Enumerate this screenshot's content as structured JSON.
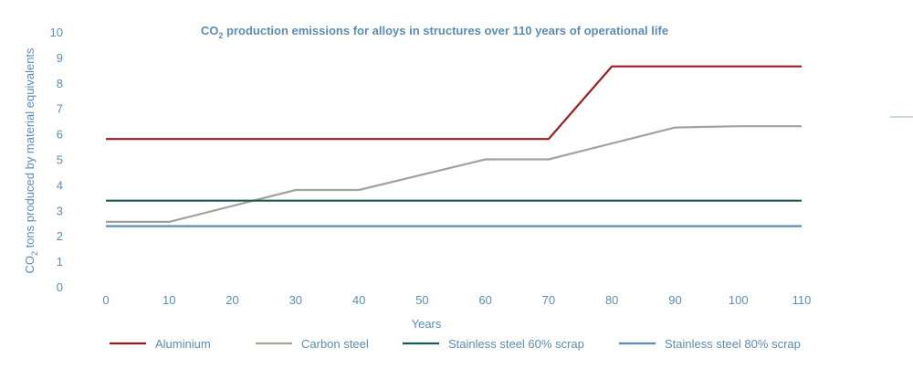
{
  "chart_data": {
    "type": "line",
    "title_prefix": "CO",
    "title_sub": "2",
    "title_rest": " production emissions for alloys in structures over 110 years of operational life",
    "xlabel": "Years",
    "ylabel_prefix": "CO",
    "ylabel_sub": "2",
    "ylabel_rest": " tons produced by material equivalents",
    "xlim": [
      0,
      110
    ],
    "ylim": [
      0,
      10
    ],
    "x_ticks": [
      0,
      10,
      20,
      30,
      40,
      50,
      60,
      70,
      80,
      90,
      100,
      110
    ],
    "y_ticks": [
      0,
      1,
      2,
      3,
      4,
      5,
      6,
      7,
      8,
      9,
      10
    ],
    "grid": false,
    "legend_position": "bottom",
    "series": [
      {
        "name": "Aluminium",
        "color": "#9b1c22",
        "points": [
          [
            0,
            5.8
          ],
          [
            70,
            5.8
          ],
          [
            80,
            8.65
          ],
          [
            110,
            8.65
          ]
        ]
      },
      {
        "name": "Carbon steel",
        "color": "#a3a39b",
        "points": [
          [
            0,
            2.55
          ],
          [
            10,
            2.55
          ],
          [
            30,
            3.8
          ],
          [
            40,
            3.8
          ],
          [
            60,
            5.0
          ],
          [
            70,
            5.0
          ],
          [
            90,
            6.25
          ],
          [
            100,
            6.3
          ],
          [
            110,
            6.3
          ]
        ]
      },
      {
        "name": "Stainless steel 60% scrap",
        "color": "#1d5a52",
        "points": [
          [
            0,
            3.38
          ],
          [
            110,
            3.38
          ]
        ]
      },
      {
        "name": "Stainless steel 80% scrap",
        "color": "#5b8db4",
        "points": [
          [
            0,
            2.38
          ],
          [
            110,
            2.38
          ]
        ]
      }
    ]
  }
}
